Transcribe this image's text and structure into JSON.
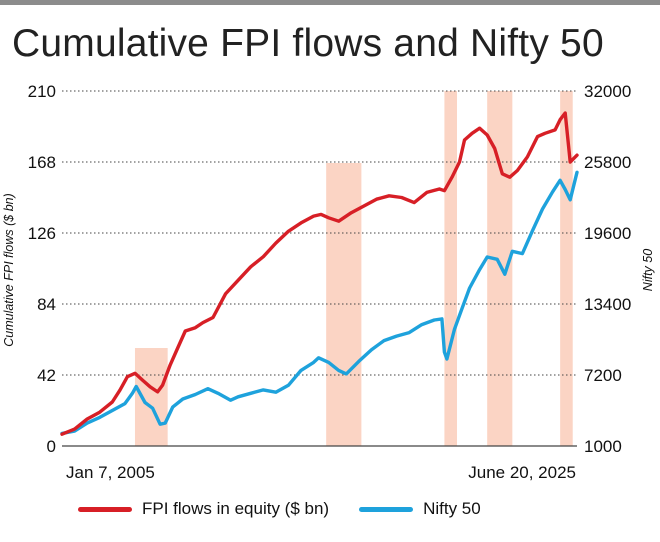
{
  "title": "Cumulative FPI flows and Nifty 50",
  "colors": {
    "fpi": "#d71f26",
    "nifty": "#1ea2dc",
    "shade": "#fbd4c4",
    "grid": "#444444"
  },
  "chart_data": {
    "type": "line",
    "x_start_label": "Jan 7, 2005",
    "x_end_label": "June 20, 2025",
    "x_range": [
      "2005-01-07",
      "2025-06-20"
    ],
    "y_left": {
      "label": "Cumulative FPI flows ($ bn)",
      "range": [
        0,
        210
      ],
      "ticks": [
        "0",
        "42",
        "84",
        "126",
        "168",
        "210"
      ]
    },
    "y_right": {
      "label": "Nifty 50",
      "range": [
        1000,
        32000
      ],
      "ticks": [
        "1000",
        "7200",
        "13400",
        "19600",
        "25800",
        "32000"
      ]
    },
    "grid": "horizontal-dotted",
    "legend_position": "bottom",
    "shaded_periods": [
      {
        "start": 2007.9,
        "end": 2009.2
      },
      {
        "start": 2015.5,
        "end": 2016.9
      },
      {
        "start": 2020.2,
        "end": 2020.7
      },
      {
        "start": 2021.9,
        "end": 2022.9
      },
      {
        "start": 2024.8,
        "end": 2025.3
      }
    ],
    "series": [
      {
        "name": "FPI flows in equity ($ bn)",
        "axis": "left",
        "x": [
          2005.0,
          2005.5,
          2006.0,
          2006.5,
          2007.0,
          2007.3,
          2007.6,
          2007.9,
          2008.2,
          2008.5,
          2008.8,
          2009.0,
          2009.3,
          2009.6,
          2009.9,
          2010.3,
          2010.6,
          2011.0,
          2011.5,
          2012.0,
          2012.5,
          2013.0,
          2013.5,
          2014.0,
          2014.5,
          2015.0,
          2015.3,
          2015.6,
          2016.0,
          2016.5,
          2017.0,
          2017.5,
          2018.0,
          2018.5,
          2019.0,
          2019.5,
          2020.0,
          2020.2,
          2020.5,
          2020.8,
          2021.0,
          2021.3,
          2021.6,
          2021.9,
          2022.2,
          2022.5,
          2022.8,
          2023.1,
          2023.5,
          2023.9,
          2024.2,
          2024.6,
          2024.8,
          2025.0,
          2025.2,
          2025.47
        ],
        "values": [
          7,
          10,
          16,
          20,
          26,
          33,
          41,
          43,
          39,
          35,
          32,
          36,
          48,
          58,
          68,
          70,
          73,
          76,
          90,
          98,
          106,
          112,
          120,
          127,
          132,
          136,
          137,
          135,
          133,
          138,
          142,
          146,
          148,
          147,
          144,
          150,
          152,
          151,
          159,
          168,
          181,
          185,
          188,
          184,
          176,
          161,
          159,
          163,
          171,
          183,
          185,
          187,
          193,
          197,
          168,
          172
        ]
      },
      {
        "name": "Nifty 50",
        "axis": "right",
        "x": [
          2005.0,
          2005.5,
          2006.0,
          2006.5,
          2007.0,
          2007.5,
          2007.8,
          2007.95,
          2008.3,
          2008.6,
          2008.9,
          2009.1,
          2009.4,
          2009.8,
          2010.3,
          2010.8,
          2011.2,
          2011.7,
          2012.0,
          2012.5,
          2013.0,
          2013.5,
          2014.0,
          2014.5,
          2015.0,
          2015.2,
          2015.6,
          2016.0,
          2016.3,
          2016.8,
          2017.3,
          2017.8,
          2018.3,
          2018.8,
          2019.3,
          2019.8,
          2020.1,
          2020.2,
          2020.3,
          2020.6,
          2020.9,
          2021.2,
          2021.6,
          2021.9,
          2022.3,
          2022.6,
          2022.9,
          2023.3,
          2023.7,
          2024.1,
          2024.5,
          2024.8,
          2025.0,
          2025.2,
          2025.47
        ],
        "values": [
          2100,
          2300,
          3000,
          3500,
          4100,
          4700,
          5600,
          6200,
          4800,
          4300,
          2900,
          3000,
          4400,
          5100,
          5500,
          6000,
          5600,
          5000,
          5300,
          5600,
          5900,
          5700,
          6300,
          7600,
          8300,
          8700,
          8300,
          7600,
          7300,
          8400,
          9400,
          10200,
          10600,
          10900,
          11600,
          12000,
          12100,
          9200,
          8600,
          11200,
          13000,
          14800,
          16400,
          17500,
          17300,
          16000,
          18000,
          17800,
          19800,
          21700,
          23200,
          24200,
          23400,
          22500,
          24900
        ]
      }
    ]
  }
}
